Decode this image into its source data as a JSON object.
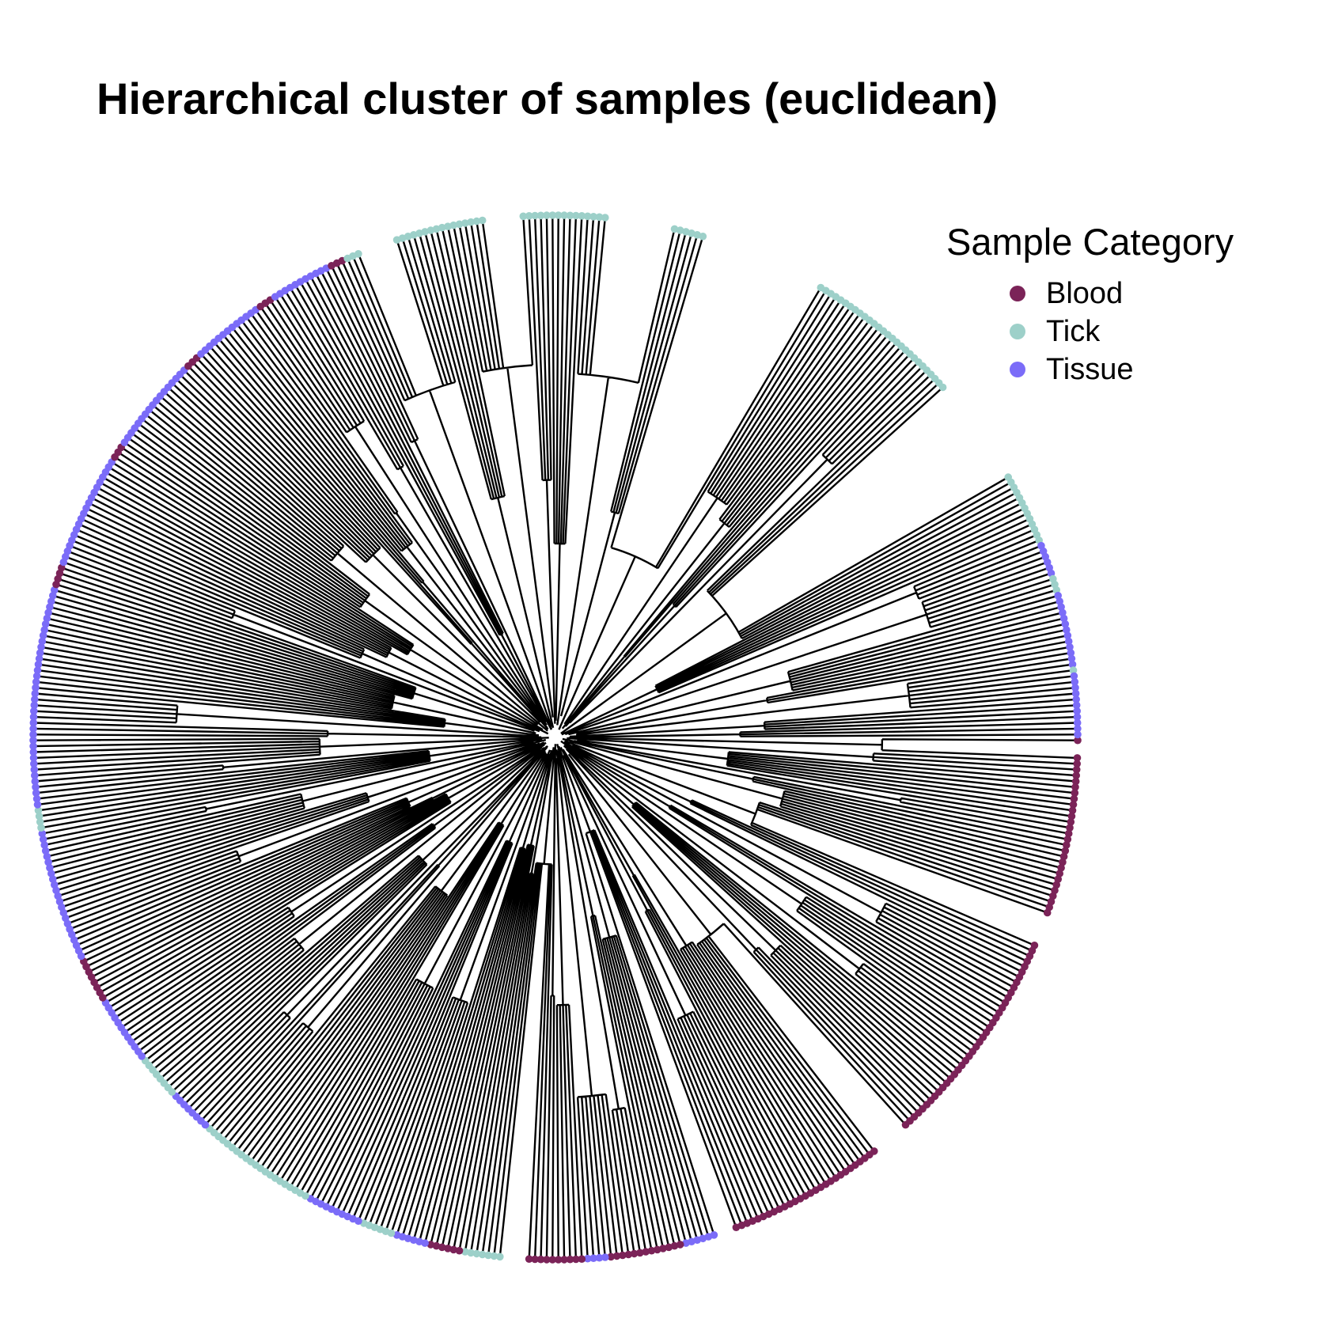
{
  "title": "Hierarchical cluster of samples (euclidean)",
  "legend": {
    "title": "Sample Category",
    "items": [
      {
        "label": "Blood",
        "color": "#7b2358"
      },
      {
        "label": "Tick",
        "color": "#9dd0c9"
      },
      {
        "label": "Tissue",
        "color": "#7b6cf8"
      }
    ]
  },
  "chart_data": {
    "type": "circular-dendrogram",
    "title": "Hierarchical cluster of samples (euclidean)",
    "legend_placement": "top-right",
    "grid": false,
    "leaf_count_approx": 560,
    "category_segments": [
      {
        "category": "Blood",
        "start_deg": 0,
        "end_deg": 30
      },
      {
        "category": "Blood",
        "start_deg": 30,
        "end_deg": 62
      },
      {
        "category": "Blood",
        "start_deg": 62,
        "end_deg": 72
      },
      {
        "category": "Tissue",
        "start_deg": 72,
        "end_deg": 76
      },
      {
        "category": "Blood",
        "start_deg": 76,
        "end_deg": 84
      },
      {
        "category": "Tissue",
        "start_deg": 84,
        "end_deg": 87
      },
      {
        "category": "Blood",
        "start_deg": 87,
        "end_deg": 96
      },
      {
        "category": "Tick",
        "start_deg": 96,
        "end_deg": 100
      },
      {
        "category": "Blood",
        "start_deg": 100,
        "end_deg": 104
      },
      {
        "category": "Tissue",
        "start_deg": 104,
        "end_deg": 108
      },
      {
        "category": "Tick",
        "start_deg": 108,
        "end_deg": 112
      },
      {
        "category": "Tissue",
        "start_deg": 112,
        "end_deg": 118
      },
      {
        "category": "Tick",
        "start_deg": 118,
        "end_deg": 132
      },
      {
        "category": "Tissue",
        "start_deg": 132,
        "end_deg": 137
      },
      {
        "category": "Tick",
        "start_deg": 137,
        "end_deg": 142
      },
      {
        "category": "Tissue",
        "start_deg": 142,
        "end_deg": 150
      },
      {
        "category": "Blood",
        "start_deg": 150,
        "end_deg": 155
      },
      {
        "category": "Tissue",
        "start_deg": 155,
        "end_deg": 170
      },
      {
        "category": "Tick",
        "start_deg": 170,
        "end_deg": 172
      },
      {
        "category": "Tissue",
        "start_deg": 172,
        "end_deg": 197
      },
      {
        "category": "Blood",
        "start_deg": 197,
        "end_deg": 199
      },
      {
        "category": "Tissue",
        "start_deg": 199,
        "end_deg": 212
      },
      {
        "category": "Blood",
        "start_deg": 212,
        "end_deg": 214
      },
      {
        "category": "Tissue",
        "start_deg": 214,
        "end_deg": 225
      },
      {
        "category": "Blood",
        "start_deg": 225,
        "end_deg": 227
      },
      {
        "category": "Tissue",
        "start_deg": 227,
        "end_deg": 235
      },
      {
        "category": "Blood",
        "start_deg": 235,
        "end_deg": 237
      },
      {
        "category": "Tissue",
        "start_deg": 237,
        "end_deg": 244
      },
      {
        "category": "Blood",
        "start_deg": 244,
        "end_deg": 246
      },
      {
        "category": "Tick",
        "start_deg": 246,
        "end_deg": 281
      },
      {
        "category": "Tissue",
        "start_deg": 281,
        "end_deg": 283
      },
      {
        "category": "Tick",
        "start_deg": 283,
        "end_deg": 338
      },
      {
        "category": "Tissue",
        "start_deg": 338,
        "end_deg": 342
      },
      {
        "category": "Tick",
        "start_deg": 342,
        "end_deg": 344
      },
      {
        "category": "Tissue",
        "start_deg": 344,
        "end_deg": 352
      },
      {
        "category": "Tick",
        "start_deg": 352,
        "end_deg": 353
      },
      {
        "category": "Tissue",
        "start_deg": 353,
        "end_deg": 360
      }
    ],
    "empty_wedges_deg": [
      [
        0.5,
        2
      ],
      [
        20,
        23
      ],
      [
        48,
        52
      ],
      [
        70,
        72
      ],
      [
        93,
        96
      ],
      [
        248,
        252
      ],
      [
        262,
        266
      ],
      [
        276,
        283
      ],
      [
        287,
        300
      ],
      [
        318,
        330
      ]
    ]
  }
}
